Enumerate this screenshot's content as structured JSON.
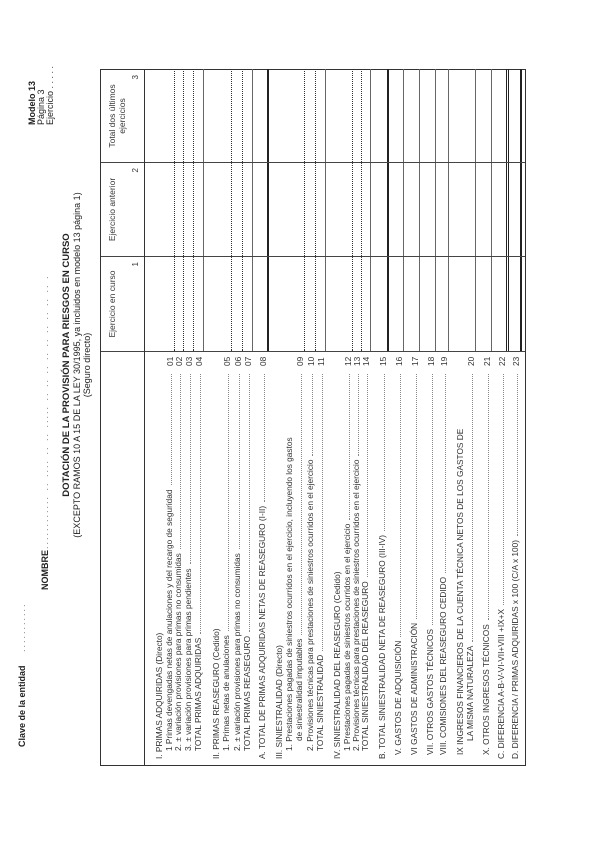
{
  "header": {
    "clave_label": "Clave de la entidad",
    "clave_dots": "...........",
    "nombre_label": "NOMBRE",
    "nombre_dots": "............  ..  ....  ..  ..  .....  ..  ..  ..  ..  ..  ..  ..  ..  ..  .",
    "modelo": "Modelo 13",
    "pagina": "Página 3",
    "ejercicio": "Ejercicio . . .   . ."
  },
  "title": {
    "main": "DOTACIÓN DE LA PROVISIÓN PARA RIESGOS EN CURSO",
    "subtitle": "(EXCEPTO RAMOS 10 A 15 DE LA LEY 30/1995, ya incluidos en modelo 13 página 1)",
    "note": "(Seguro directo)"
  },
  "table": {
    "columns": [
      {
        "label": "Ejercicio en curso",
        "number": "1"
      },
      {
        "label": "Ejercicio anterior",
        "number": "2"
      },
      {
        "label": "Total dos últimos ejercicios",
        "number": "3"
      }
    ],
    "rows": [
      {
        "label": "I. PRIMAS ADQUIRIDAS (Directo)",
        "code": ""
      },
      {
        "label": "1  Primas devengadas netas de anulaciones y del recargo de seguridad",
        "code": "01"
      },
      {
        "label": "2. ± variación provisiones para primas no consumidas",
        "code": "02"
      },
      {
        "label": "3. ± variación provisiones para primas pendientes",
        "code": "03"
      },
      {
        "label": "TOTAL PRIMAS ADQUIRIDAS",
        "code": "04"
      },
      {
        "label": "II. PRIMAS REASEGURO (Cedido)",
        "code": ""
      },
      {
        "label": "1. Primas netas de anulaciones",
        "code": "05"
      },
      {
        "label": "2. ± variación provisiones para primas no consumidas",
        "code": "06"
      },
      {
        "label": "TOTAL PRIMAS REASEGURO",
        "code": "07"
      },
      {
        "label": "A. TOTAL DE PRIMAS ADQUIRIDAS NETAS DE REASEGURO (I-II)",
        "code": "08"
      },
      {
        "label": "III. SINIESTRALIDAD (Directo)",
        "code": ""
      },
      {
        "label": "1. Prestaciones pagadas de siniestros ocurridos en el ejercicio, incluyendo los gastos",
        "code": ""
      },
      {
        "label": "de siniestralidad imputables",
        "code": "09"
      },
      {
        "label": "2. Provisiones técnicas para prestaciones de siniestros ocurridos en el ejercicio",
        "code": "10"
      },
      {
        "label": "TOTAL SINIESTRALIDAD",
        "code": "11"
      },
      {
        "label": "IV.  SINIESTRALIDAD DEL REASEGURO (Cedido)",
        "code": ""
      },
      {
        "label": "1  Prestaciones pagadas de siniestros ocurridos en el ejercicio",
        "code": "12"
      },
      {
        "label": "2. Provisiones técnicas para prestaciones de siniestros ocurridos en el ejercicio",
        "code": "13"
      },
      {
        "label": "TOTAL SINIESTRALIDAD DEL REASEGURO",
        "code": "14"
      },
      {
        "label": "B. TOTAL SINIESTRALIDAD NETA DE REASEGURO (III-IV)",
        "code": "15"
      },
      {
        "label": "V. GASTOS DE ADQUISICIÓN",
        "code": "16"
      },
      {
        "label": "VI  GASTOS DE ADMINISTRACIÓN",
        "code": "17"
      },
      {
        "label": "VII. OTROS GASTOS TÉCNICOS",
        "code": "18"
      },
      {
        "label": "VIII. COMISIONES DEL REASEGURO CEDIDO",
        "code": "19"
      },
      {
        "label": "IX   INGRESOS FINANCIEROS DE LA CUENTA TÉCNICA NETOS DE LOS GASTOS DE",
        "code": ""
      },
      {
        "label": "LA MISMA NATURALEZA",
        "code": "20"
      },
      {
        "label": "X. OTROS INGRESOS TÉCNICOS",
        "code": "21"
      },
      {
        "label": "C.  DIFERENCIA   A-B-V-VI-VII+VIII +IX+X",
        "code": "22"
      },
      {
        "label": "D.  DIFERENCIA / PRIMAS ADQUIRIDAS x 100  (C/A x 100)",
        "code": "23"
      }
    ]
  }
}
